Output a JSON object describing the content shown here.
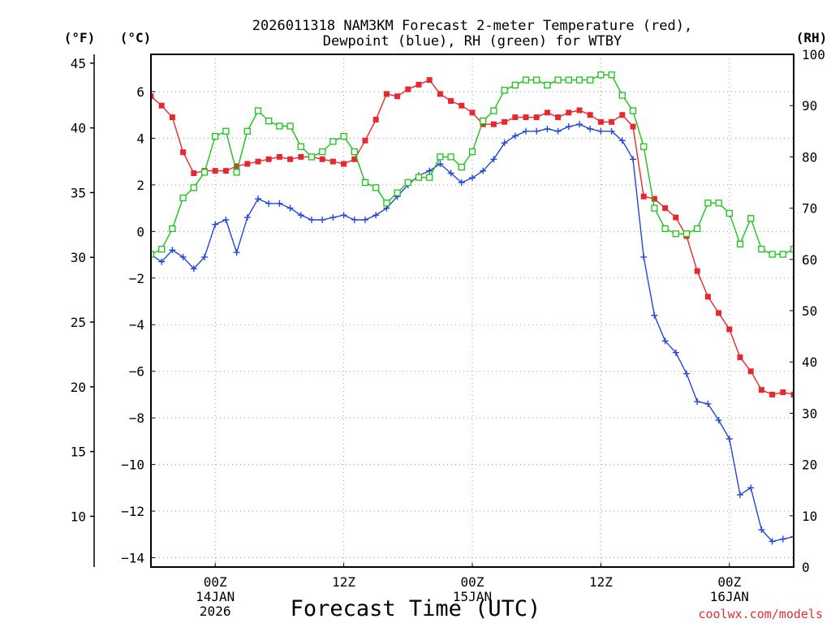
{
  "chart_data": {
    "type": "line",
    "title_line1": "2026011318 NAM3KM Forecast 2-meter Temperature (red),",
    "title_line2": "Dewpoint (blue), RH (green) for WTBY",
    "xlabel": "Forecast Time (UTC)",
    "credit": "coolwx.com/models",
    "unit_labels": {
      "fahrenheit": "(°F)",
      "celsius": "(°C)",
      "rh": "(RH)"
    },
    "x_range_hours": [
      0,
      60
    ],
    "celsius_range": [
      -14.4,
      7.6
    ],
    "rh_range": [
      0,
      100
    ],
    "fahrenheit_ticks": [
      "10",
      "15",
      "20",
      "25",
      "30",
      "35",
      "40",
      "45"
    ],
    "celsius_ticks": [
      "−14",
      "−12",
      "−10",
      "−8",
      "−6",
      "−4",
      "−2",
      "0",
      "2",
      "4",
      "6"
    ],
    "rh_ticks": [
      "0",
      "10",
      "20",
      "30",
      "40",
      "50",
      "60",
      "70",
      "80",
      "90",
      "100"
    ],
    "x_ticks": [
      {
        "hour": 6,
        "label": "00Z",
        "date": "14JAN",
        "year": "2026"
      },
      {
        "hour": 18,
        "label": "12Z",
        "date": "",
        "year": ""
      },
      {
        "hour": 30,
        "label": "00Z",
        "date": "15JAN",
        "year": ""
      },
      {
        "hour": 42,
        "label": "12Z",
        "date": "",
        "year": ""
      },
      {
        "hour": 54,
        "label": "00Z",
        "date": "16JAN",
        "year": ""
      }
    ],
    "series": [
      {
        "name": "2-meter Temperature",
        "axis": "celsius",
        "color": "#e8282e",
        "marker": "filled-square",
        "values": [
          5.8,
          5.4,
          4.9,
          3.4,
          2.5,
          2.6,
          2.6,
          2.6,
          2.8,
          2.9,
          3.0,
          3.1,
          3.2,
          3.1,
          3.2,
          3.2,
          3.1,
          3.0,
          2.9,
          3.1,
          3.9,
          4.8,
          5.9,
          5.8,
          6.1,
          6.3,
          6.5,
          5.9,
          5.6,
          5.4,
          5.1,
          4.6,
          4.6,
          4.7,
          4.9,
          4.9,
          4.9,
          5.1,
          4.9,
          5.1,
          5.2,
          5.0,
          4.7,
          4.7,
          5.0,
          4.5,
          1.5,
          1.4,
          1.0,
          0.6,
          -0.2,
          -1.7,
          -2.8,
          -3.5,
          -4.2,
          -5.4,
          -6.0,
          -6.8,
          -7.0,
          -6.9,
          -7.0
        ]
      },
      {
        "name": "Dewpoint",
        "axis": "celsius",
        "color": "#2147d8",
        "marker": "plus",
        "values": [
          -1.0,
          -1.3,
          -0.8,
          -1.1,
          -1.6,
          -1.1,
          0.3,
          0.5,
          -0.9,
          0.6,
          1.4,
          1.2,
          1.2,
          1.0,
          0.7,
          0.5,
          0.5,
          0.6,
          0.7,
          0.5,
          0.5,
          0.7,
          1.0,
          1.5,
          2.0,
          2.4,
          2.6,
          2.9,
          2.5,
          2.1,
          2.3,
          2.6,
          3.1,
          3.8,
          4.1,
          4.3,
          4.3,
          4.4,
          4.3,
          4.5,
          4.6,
          4.4,
          4.3,
          4.3,
          3.9,
          3.1,
          -1.1,
          -3.6,
          -4.7,
          -5.2,
          -6.1,
          -7.3,
          -7.4,
          -8.1,
          -8.9,
          -11.3,
          -11.0,
          -12.8,
          -13.3,
          -13.2,
          -13.1
        ]
      },
      {
        "name": "RH",
        "axis": "rh",
        "color": "#19c419",
        "marker": "open-square",
        "values": [
          61,
          62,
          66,
          72,
          74,
          77,
          84,
          85,
          77,
          85,
          89,
          87,
          86,
          86,
          82,
          80,
          81,
          83,
          84,
          81,
          75,
          74,
          71,
          73,
          75,
          76,
          76,
          80,
          80,
          78,
          81,
          87,
          89,
          93,
          94,
          95,
          95,
          94,
          95,
          95,
          95,
          95,
          96,
          96,
          92,
          89,
          82,
          70,
          66,
          65,
          65,
          66,
          71,
          71,
          69,
          63,
          68,
          62,
          61,
          61,
          62
        ]
      }
    ]
  }
}
